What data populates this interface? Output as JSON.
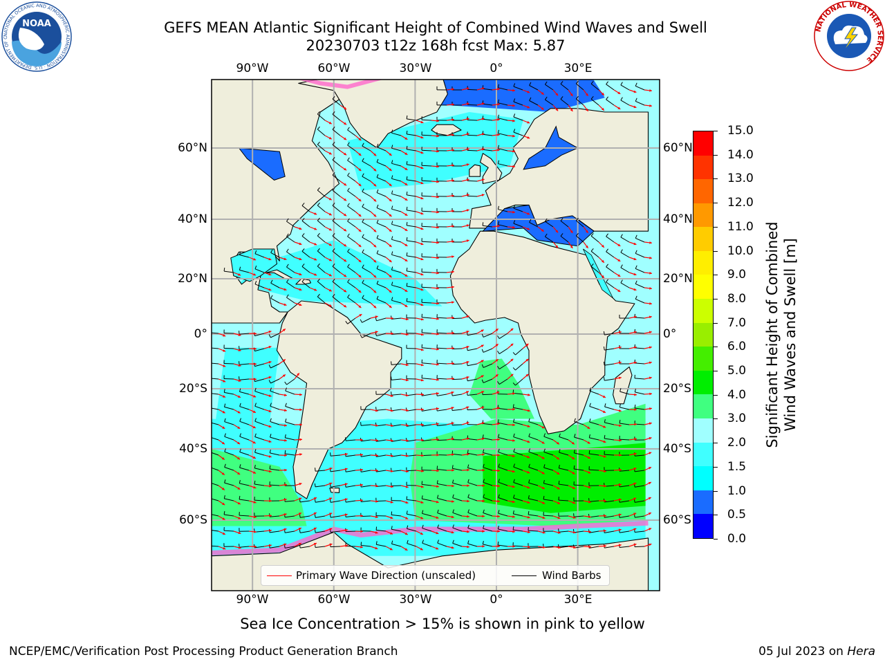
{
  "title": {
    "line1": "GEFS MEAN Atlantic Significant Height of Combined Wind Waves and Swell",
    "line2": "20230703 t12z 168h fcst   Max: 5.87"
  },
  "axes": {
    "lon_labels": [
      "90°W",
      "60°W",
      "30°W",
      "0°",
      "30°E"
    ],
    "lat_labels": [
      "60°N",
      "40°N",
      "20°N",
      "0°",
      "20°S",
      "40°S",
      "60°S"
    ]
  },
  "colorbar": {
    "label_line1": "Significant Height of Combined",
    "label_line2": "Wind Waves and Swell [m]",
    "ticks": [
      "0.0",
      "0.5",
      "1.0",
      "1.5",
      "2.0",
      "3.0",
      "4.0",
      "5.0",
      "6.0",
      "7.0",
      "8.0",
      "9.0",
      "10.0",
      "11.0",
      "12.0",
      "13.0",
      "14.0",
      "15.0"
    ],
    "colors": [
      "#0000ff",
      "#1a6cff",
      "#00ffff",
      "#40ffff",
      "#a0ffff",
      "#40ff80",
      "#00ee00",
      "#44ee00",
      "#99ee00",
      "#ccff00",
      "#ffff00",
      "#ffee00",
      "#ffcc00",
      "#ff9900",
      "#ff6600",
      "#ff3300",
      "#ff0000"
    ]
  },
  "legend": {
    "wave_direction": "Primary Wave Direction (unscaled)",
    "wind_barbs": "Wind Barbs",
    "wave_color": "#ff0000",
    "barb_color": "#000000"
  },
  "map_colors": {
    "land": "#efeedc",
    "ocean_low": "#a0ffff",
    "ocean_mid": "#40ffff",
    "ocean_green": "#40ff80",
    "ocean_green_high": "#00ee00",
    "enclosed_sea": "#1a6cff",
    "deep_blue": "#0000ff",
    "ice": "#ff66cc",
    "grid": "#b0b0b0"
  },
  "footnote": "Sea Ice Concentration > 15% is shown in pink to yellow",
  "credit": "NCEP/EMC/Verification Post Processing Product Generation Branch",
  "date": {
    "text": "05 Jul 2023 on ",
    "machine": "Hera"
  },
  "logos": {
    "noaa": "NOAA",
    "noaa_ring": "NATIONAL OCEANIC AND ATMOSPHERIC ADMINISTRATION · U.S. DEPARTMENT OF COMMERCE",
    "nws_ring": "NATIONAL WEATHER SERVICE"
  }
}
